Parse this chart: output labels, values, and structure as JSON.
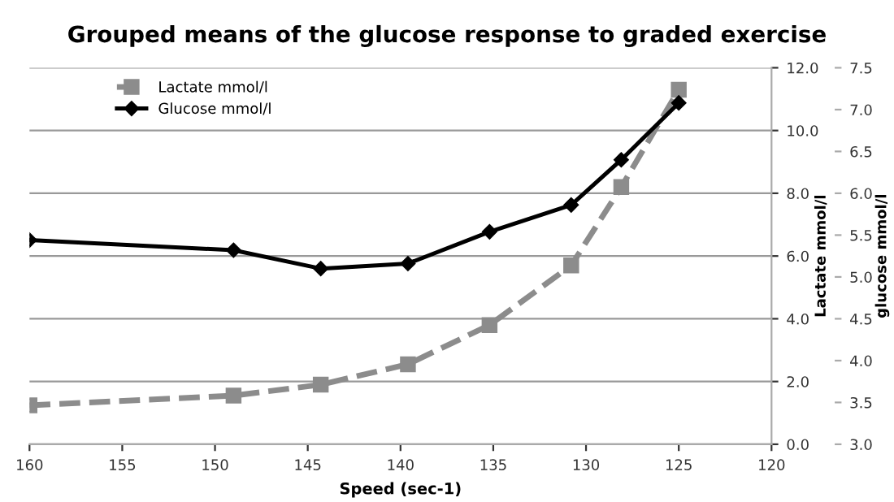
{
  "chart_data": {
    "type": "line",
    "title": "Grouped means of the glucose response to graded exercise",
    "xlabel": "Speed (sec-1)",
    "ylabel": "Lactate mmol/l",
    "y2label": "glucose mmol/l",
    "xlim": [
      160,
      120
    ],
    "xticks": [
      160,
      155,
      150,
      145,
      140,
      135,
      130,
      125,
      120
    ],
    "ylim": [
      0,
      12
    ],
    "yticks": [
      {
        "value": 0,
        "label": "0.0"
      },
      {
        "value": 2,
        "label": "2.0"
      },
      {
        "value": 4,
        "label": "4.0"
      },
      {
        "value": 6,
        "label": "6.0"
      },
      {
        "value": 8,
        "label": "8.0"
      },
      {
        "value": 10,
        "label": "10.0"
      },
      {
        "value": 12,
        "label": "12.0"
      }
    ],
    "y2lim": [
      3,
      7.5
    ],
    "y2ticks": [
      {
        "value": 3,
        "label": "3.0"
      },
      3.5,
      {
        "value": 4,
        "label": "4.0"
      },
      4.5,
      {
        "value": 5,
        "label": "5.0"
      },
      5.5,
      {
        "value": 6,
        "label": "6.0"
      },
      6.5,
      {
        "value": 7,
        "label": "7.0"
      },
      7.5
    ],
    "x": [
      160,
      149.0,
      144.3,
      139.6,
      135.2,
      130.8,
      128.1,
      125.0
    ],
    "series": [
      {
        "name": "Lactate mmol/l",
        "color": "#8c8c8c",
        "marker": "square",
        "line_style": "dashed",
        "values": [
          1.24,
          1.55,
          1.9,
          2.55,
          3.8,
          5.7,
          8.2,
          11.3
        ]
      },
      {
        "name": "Glucose mmol/l",
        "color": "#000000",
        "marker": "diamond",
        "line_style": "solid",
        "axis": "y2",
        "values": [
          5.44,
          5.32,
          5.1,
          5.16,
          5.54,
          5.86,
          6.4,
          7.08
        ]
      }
    ],
    "grid": "y",
    "legend": "top left"
  }
}
